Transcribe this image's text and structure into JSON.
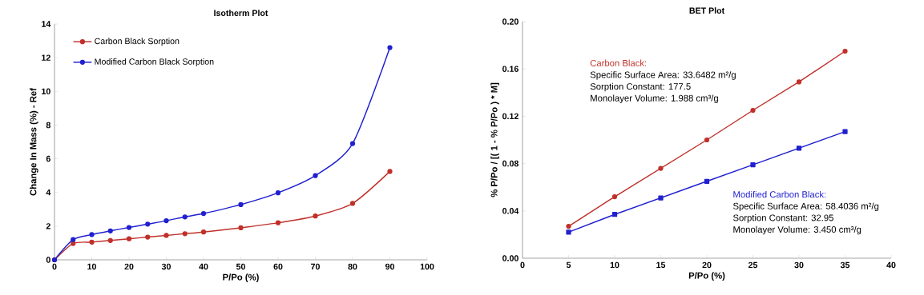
{
  "chart_data": [
    {
      "type": "line",
      "title": "Isotherm Plot",
      "xlabel": "P/Po (%)",
      "ylabel": "Change In Mass (%) - Ref",
      "x": [
        0,
        5,
        10,
        15,
        20,
        25,
        30,
        35,
        40,
        50,
        60,
        70,
        80,
        90
      ],
      "series": [
        {
          "name": "Carbon Black Sorption",
          "color": "#c0302a",
          "marker": "circle",
          "values": [
            0,
            0.97,
            1.05,
            1.15,
            1.25,
            1.35,
            1.45,
            1.55,
            1.65,
            1.9,
            2.2,
            2.6,
            3.35,
            5.25
          ]
        },
        {
          "name": "Modified Carbon Black Sorption",
          "color": "#2020d0",
          "marker": "circle",
          "values": [
            0,
            1.2,
            1.5,
            1.72,
            1.92,
            2.12,
            2.32,
            2.55,
            2.75,
            3.28,
            3.98,
            5.0,
            6.9,
            12.6
          ]
        }
      ],
      "xlim": [
        0,
        100
      ],
      "xticks": [
        0,
        10,
        20,
        30,
        40,
        50,
        60,
        70,
        80,
        90,
        100
      ],
      "ylim": [
        0,
        14
      ],
      "yticks": [
        0,
        2,
        4,
        6,
        8,
        10,
        12,
        14
      ],
      "legend": "top left",
      "grid": false
    },
    {
      "type": "line",
      "title": "BET Plot",
      "xlabel": "P/Po (%)",
      "ylabel": "% P/Po / [( 1 - % P/Po ) * M]",
      "x": [
        5,
        10,
        15,
        20,
        25,
        30,
        35
      ],
      "series": [
        {
          "name": "Carbon Black:",
          "color": "#c0302a",
          "marker": "circle",
          "values": [
            0.027,
            0.052,
            0.076,
            0.1,
            0.125,
            0.149,
            0.175
          ]
        },
        {
          "name": "Modified Carbon Black:",
          "color": "#2020d0",
          "marker": "square",
          "values": [
            0.022,
            0.037,
            0.051,
            0.065,
            0.079,
            0.093,
            0.107
          ]
        }
      ],
      "annotations": [
        "Specific Surface Area: 33.6482 m²/g",
        "Sorption Constant: 177.5",
        "Monolayer Volume: 1.988 cm³/g",
        "Specific Surface Area: 58.4036 m²/g",
        "Sorption Constant: 32.95",
        "Monolayer Volume: 3.450 cm³/g"
      ],
      "xlim": [
        0,
        40
      ],
      "xticks": [
        0,
        5,
        10,
        15,
        20,
        25,
        30,
        35,
        40
      ],
      "ylim": [
        0,
        0.2
      ],
      "yticks": [
        {
          "value": 0,
          "label": "0.00"
        },
        {
          "value": 0.04,
          "label": "0.04"
        },
        {
          "value": 0.08,
          "label": "0.08"
        },
        {
          "value": 0.12,
          "label": "0.12"
        },
        {
          "value": 0.16,
          "label": "0.16"
        },
        {
          "value": 0.2,
          "label": "0.20"
        }
      ],
      "legend": false,
      "grid": false
    }
  ]
}
